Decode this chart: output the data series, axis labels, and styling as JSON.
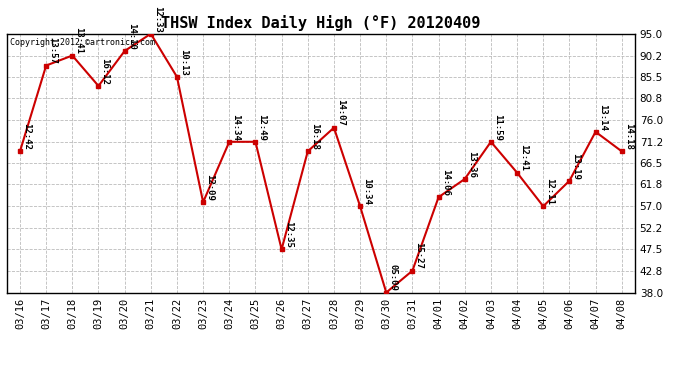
{
  "title": "THSW Index Daily High (°F) 20120409",
  "copyright_text": "Copyright 2012 ©artronics.com",
  "dates": [
    "03/16",
    "03/17",
    "03/18",
    "03/19",
    "03/20",
    "03/21",
    "03/22",
    "03/23",
    "03/24",
    "03/25",
    "03/26",
    "03/27",
    "03/28",
    "03/29",
    "03/30",
    "03/31",
    "04/01",
    "04/02",
    "04/03",
    "04/04",
    "04/05",
    "04/06",
    "04/07",
    "04/08"
  ],
  "values": [
    69.1,
    88.0,
    90.2,
    83.5,
    91.2,
    95.0,
    85.5,
    57.9,
    71.2,
    71.2,
    47.5,
    69.1,
    74.3,
    57.0,
    38.0,
    42.8,
    59.0,
    63.0,
    71.2,
    64.4,
    57.0,
    62.6,
    73.4,
    69.1
  ],
  "labels": [
    "12:42",
    "13:57",
    "13:41",
    "16:12",
    "14:10",
    "12:33",
    "10:13",
    "12:09",
    "14:34",
    "12:49",
    "12:35",
    "16:18",
    "14:07",
    "10:34",
    "05:09",
    "15:27",
    "14:06",
    "13:36",
    "11:59",
    "12:41",
    "12:11",
    "13:19",
    "13:14",
    "14:18"
  ],
  "ylim": [
    38.0,
    95.0
  ],
  "yticks": [
    38.0,
    42.8,
    47.5,
    52.2,
    57.0,
    61.8,
    66.5,
    71.2,
    76.0,
    80.8,
    85.5,
    90.2,
    95.0
  ],
  "line_color": "#cc0000",
  "marker_color": "#cc0000",
  "bg_color": "#ffffff",
  "grid_color": "#bbbbbb",
  "title_fontsize": 11,
  "label_fontsize": 6.5,
  "tick_fontsize": 7.5,
  "copyright_fontsize": 6.0
}
